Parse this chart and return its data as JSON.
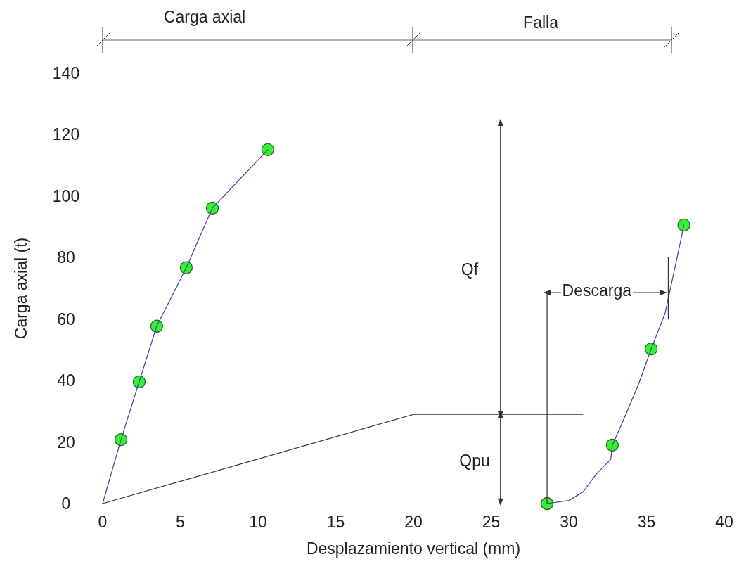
{
  "chart_data": {
    "type": "line",
    "xlabel": "Desplazamiento vertical (mm)",
    "ylabel": "Carga axial (t)",
    "xlim": [
      0,
      40
    ],
    "xticks": [
      0,
      5,
      10,
      15,
      20,
      25,
      30,
      35,
      40
    ],
    "ylim": [
      0,
      140
    ],
    "yticks": [
      0,
      20,
      40,
      60,
      80,
      100,
      120,
      140
    ],
    "grid": false,
    "series": [
      {
        "color": "#3a3f9a",
        "marker": "none",
        "x": [
          0,
          1.18,
          2.35,
          3.48,
          5.38,
          7.06,
          10.63
        ],
        "values": [
          0,
          20.8,
          39.6,
          57.7,
          76.7,
          96.1,
          115.1
        ]
      },
      {
        "type": "scatter",
        "color": "#00ee00",
        "marker": "circle",
        "x": [
          1.18,
          2.35,
          3.48,
          5.38,
          7.06,
          10.63
        ],
        "values": [
          20.8,
          39.6,
          57.7,
          76.7,
          96.1,
          115.1
        ]
      },
      {
        "type": "line",
        "color": "#3a3f9a",
        "marker": "none",
        "x": [
          28.6,
          30.0,
          30.9,
          31.8,
          32.7,
          32.8,
          33.5,
          34.5,
          35.3,
          36.2,
          37.2,
          37.4
        ],
        "values": [
          0,
          1,
          3.7,
          9.8,
          14.4,
          19.0,
          27,
          39,
          50.3,
          62,
          85.5,
          90.6
        ]
      },
      {
        "type": "scatter",
        "color": "#00ee00",
        "marker": "circle",
        "x": [
          28.6,
          32.8,
          35.3,
          37.4
        ],
        "values": [
          0,
          19.0,
          50.3,
          90.6
        ]
      },
      {
        "type": "line",
        "color": "#333333",
        "marker": "none",
        "x": [
          0,
          20,
          30.9
        ],
        "values": [
          0,
          29,
          29
        ]
      },
      {
        "type": "line",
        "color": "#333333",
        "marker": "triangle",
        "x": [
          25.6,
          25.6
        ],
        "values": [
          0.5,
          29
        ]
      },
      {
        "type": "line",
        "color": "#333333",
        "marker": "triangle",
        "x": [
          25.6,
          25.6
        ],
        "values": [
          29,
          124
        ]
      },
      {
        "type": "line",
        "color": "#333333",
        "marker": "none",
        "x": [
          28.6,
          28.6
        ],
        "values": [
          0,
          69
        ]
      },
      {
        "type": "line",
        "color": "#333333",
        "marker": "triangle",
        "x": [
          28.6,
          36.1
        ],
        "values": [
          68.6,
          68.6
        ]
      },
      {
        "type": "line",
        "color": "#333333",
        "marker": "none",
        "x": [
          36.4,
          36.4
        ],
        "values": [
          60,
          80
        ]
      }
    ],
    "annotations": [
      "Carga axial",
      "Falla",
      "Qf",
      "Qpu",
      {
        "text": "Descarga",
        "x": 31.8,
        "y": 69.2
      }
    ]
  }
}
